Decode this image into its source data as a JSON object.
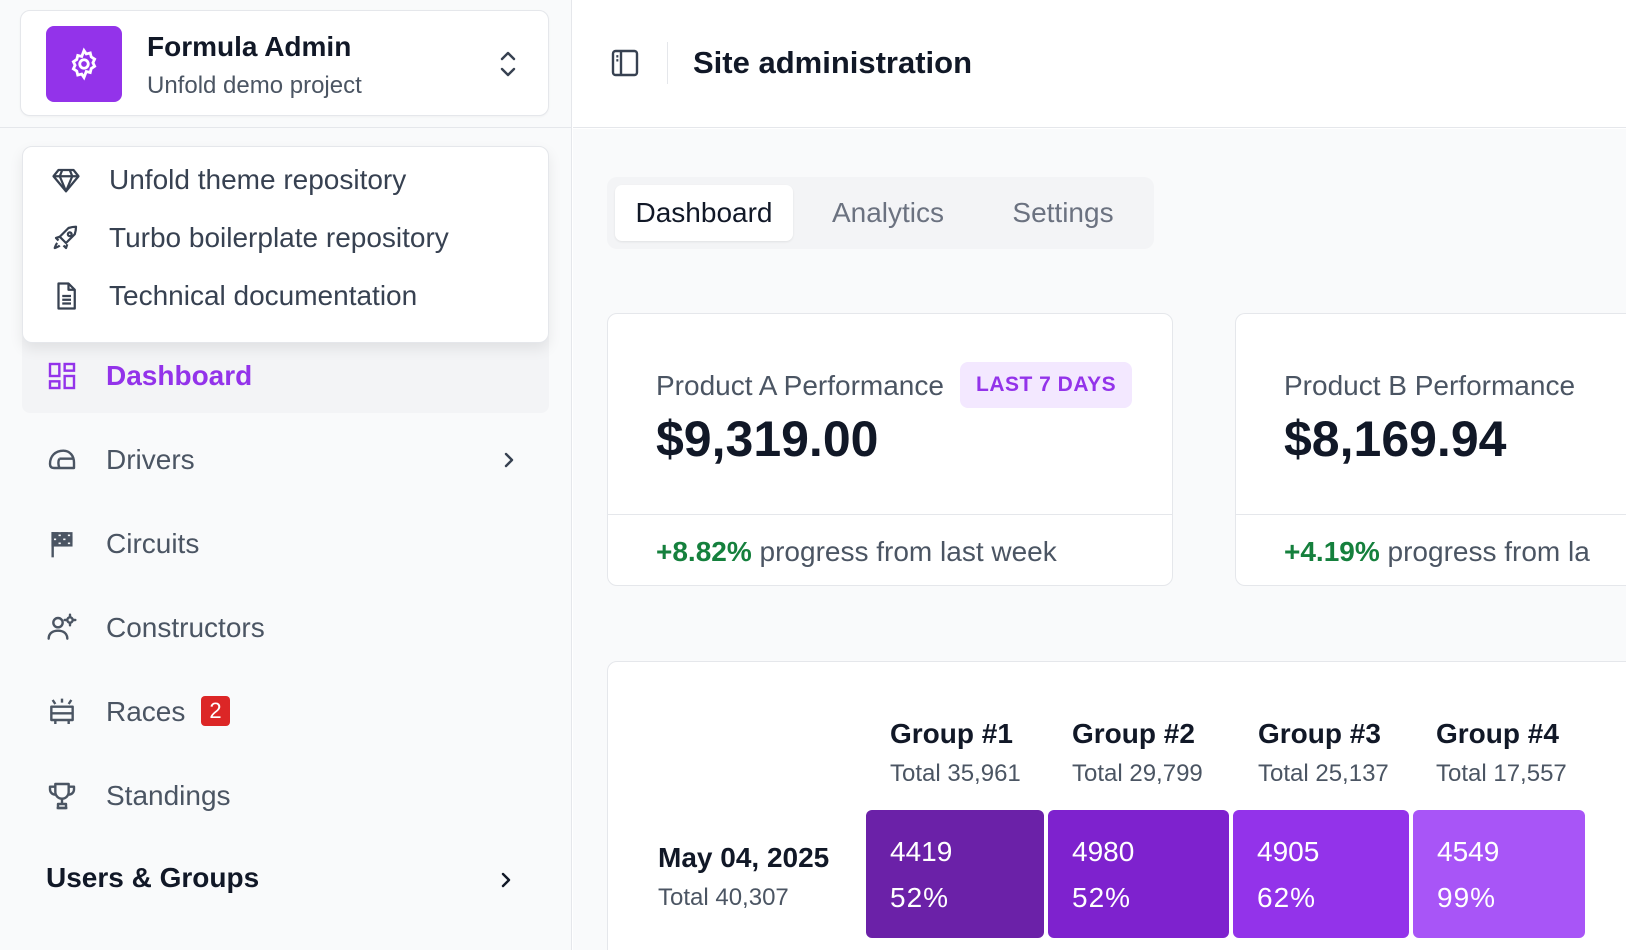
{
  "project": {
    "title": "Formula Admin",
    "subtitle": "Unfold demo project"
  },
  "dropdown": {
    "items": [
      {
        "label": "Unfold theme repository",
        "icon": "diamond-icon"
      },
      {
        "label": "Turbo boilerplate repository",
        "icon": "rocket-icon"
      },
      {
        "label": "Technical documentation",
        "icon": "document-icon"
      }
    ]
  },
  "sidebar": {
    "items": [
      {
        "label": "Dashboard",
        "icon": "dashboard-icon"
      },
      {
        "label": "Drivers",
        "icon": "helmet-icon"
      },
      {
        "label": "Circuits",
        "icon": "flag-icon"
      },
      {
        "label": "Constructors",
        "icon": "team-icon"
      },
      {
        "label": "Races",
        "icon": "race-icon",
        "badge": "2"
      },
      {
        "label": "Standings",
        "icon": "trophy-icon"
      }
    ],
    "group_label": "Users & Groups"
  },
  "header": {
    "title": "Site administration"
  },
  "tabs": [
    "Dashboard",
    "Analytics",
    "Settings"
  ],
  "cards": [
    {
      "label": "Product A Performance",
      "pill": "LAST 7 DAYS",
      "value": "$9,319.00",
      "change": "+8.82%",
      "change_text": "progress from last week"
    },
    {
      "label": "Product B Performance",
      "value": "$8,169.94",
      "change": "+4.19%",
      "change_text": "progress from la"
    }
  ],
  "cohort": {
    "groups": [
      {
        "title": "Group #1",
        "total": "Total 35,961"
      },
      {
        "title": "Group #2",
        "total": "Total 29,799"
      },
      {
        "title": "Group #3",
        "total": "Total 25,137"
      },
      {
        "title": "Group #4",
        "total": "Total 17,557"
      }
    ],
    "rows": [
      {
        "date": "May 04, 2025",
        "total": "Total 40,307",
        "cells": [
          {
            "value": "4419",
            "pct": "52%"
          },
          {
            "value": "4980",
            "pct": "52%"
          },
          {
            "value": "4905",
            "pct": "62%"
          },
          {
            "value": "4549",
            "pct": "99%"
          }
        ]
      }
    ]
  },
  "colors": {
    "accent": "#9333ea",
    "positive": "#15803d",
    "badge": "#dc2626",
    "cell_shades": [
      "#6b21a8",
      "#7e22ce",
      "#9333ea",
      "#a855f7"
    ]
  }
}
